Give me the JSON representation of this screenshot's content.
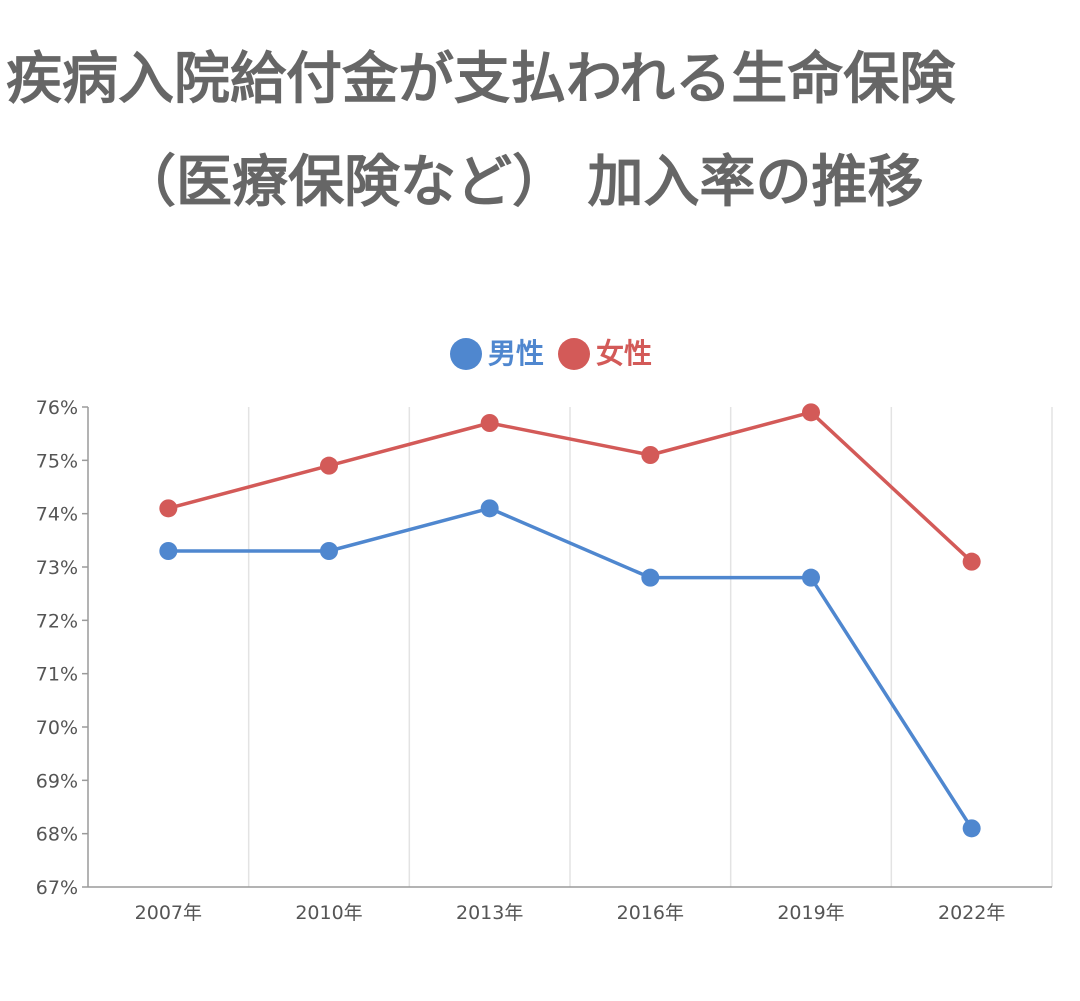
{
  "title_line1": "疾病入院給付金が支払われる生命保険",
  "title_line2": "（医療保険など） 加入率の推移",
  "colors": {
    "male": "#4f87cf",
    "female": "#d35a58",
    "grid": "#e3e3e3",
    "axis": "#9a9a9a"
  },
  "legend": [
    {
      "label": "男性",
      "color": "#4f87cf"
    },
    {
      "label": "女性",
      "color": "#d35a58"
    }
  ],
  "chart_data": {
    "type": "line",
    "categories": [
      "2007年",
      "2010年",
      "2013年",
      "2016年",
      "2019年",
      "2022年"
    ],
    "series": [
      {
        "name": "男性",
        "values": [
          73.3,
          73.3,
          74.1,
          72.8,
          72.8,
          68.1
        ]
      },
      {
        "name": "女性",
        "values": [
          74.1,
          74.9,
          75.7,
          75.1,
          75.9,
          73.1
        ]
      }
    ],
    "ylim": [
      67,
      76
    ],
    "yticks": [
      "76%",
      "75%",
      "74%",
      "73%",
      "72%",
      "71%",
      "70%",
      "69%",
      "68%",
      "67%"
    ],
    "grid": "vertical",
    "legend_position": "top"
  }
}
